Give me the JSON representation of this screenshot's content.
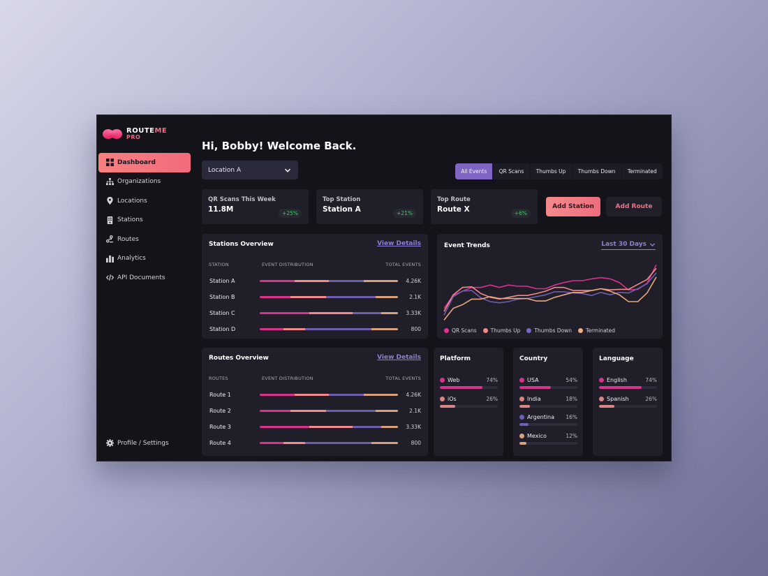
{
  "brand": {
    "name_part1": "ROUTE",
    "name_part2": "ME",
    "tier": "PRO"
  },
  "sidebar": {
    "items": [
      {
        "label": "Dashboard",
        "icon": "grid-icon",
        "active": true
      },
      {
        "label": "Organizations",
        "icon": "org-chart-icon",
        "active": false
      },
      {
        "label": "Locations",
        "icon": "map-pin-icon",
        "active": false
      },
      {
        "label": "Stations",
        "icon": "station-icon",
        "active": false
      },
      {
        "label": "Routes",
        "icon": "route-icon",
        "active": false
      },
      {
        "label": "Analytics",
        "icon": "bar-chart-icon",
        "active": false
      },
      {
        "label": "API Documents",
        "icon": "code-icon",
        "active": false
      }
    ],
    "profile_label": "Profile / Settings"
  },
  "header": {
    "greeting": "Hi, Bobby! Welcome Back.",
    "location_select": "Location A",
    "filters": [
      {
        "label": "All Events",
        "active": true
      },
      {
        "label": "QR Scans",
        "active": false
      },
      {
        "label": "Thumbs Up",
        "active": false
      },
      {
        "label": "Thumbs Down",
        "active": false
      },
      {
        "label": "Terminated",
        "active": false
      }
    ]
  },
  "stats": [
    {
      "label": "QR Scans This Week",
      "value": "11.8M",
      "change": "+25%"
    },
    {
      "label": "Top Station",
      "value": "Station A",
      "change": "+21%"
    },
    {
      "label": "Top Route",
      "value": "Route X",
      "change": "+6%"
    }
  ],
  "actions": {
    "add_station": "Add Station",
    "add_route": "Add Route"
  },
  "colors": {
    "qr_scans": "#d9328c",
    "thumbs_up": "#f2898a",
    "thumbs_down": "#6e5fae",
    "terminated": "#d9a07e",
    "accent": "#8066c2",
    "positive": "#49c26c"
  },
  "stations_overview": {
    "title": "Stations Overview",
    "view_details": "View Details",
    "columns": [
      "STATION",
      "EVENT DISTRIBUTION",
      "TOTAL EVENTS"
    ],
    "rows": [
      {
        "name": "Station A",
        "dist": [
          25,
          25,
          25,
          25
        ],
        "total": "4.26K"
      },
      {
        "name": "Station B",
        "dist": [
          22,
          26,
          36,
          16
        ],
        "total": "2.1K"
      },
      {
        "name": "Station C",
        "dist": [
          36,
          31,
          21,
          12
        ],
        "total": "3.33K"
      },
      {
        "name": "Station D",
        "dist": [
          17,
          16,
          48,
          19
        ],
        "total": "800"
      }
    ]
  },
  "routes_overview": {
    "title": "Routes Overview",
    "view_details": "View Details",
    "columns": [
      "ROUTES",
      "EVENT DISTRIBUTION",
      "TOTAL EVENTS"
    ],
    "rows": [
      {
        "name": "Route 1",
        "dist": [
          25,
          25,
          25,
          25
        ],
        "total": "4.26K"
      },
      {
        "name": "Route 2",
        "dist": [
          22,
          26,
          36,
          16
        ],
        "total": "2.1K"
      },
      {
        "name": "Route 3",
        "dist": [
          36,
          31,
          21,
          12
        ],
        "total": "3.33K"
      },
      {
        "name": "Route 4",
        "dist": [
          17,
          16,
          48,
          19
        ],
        "total": "800"
      }
    ]
  },
  "event_trends": {
    "title": "Event Trends",
    "range": "Last 30 Days",
    "legend": [
      "QR Scans",
      "Thumbs Up",
      "Thumbs Down",
      "Terminated"
    ]
  },
  "chart_data": {
    "type": "line",
    "title": "Event Trends",
    "xlabel": "",
    "ylabel": "",
    "x": [
      1,
      2,
      3,
      4,
      5,
      6,
      7,
      8,
      9,
      10,
      11,
      12,
      13,
      14,
      15,
      16,
      17,
      18,
      19,
      20,
      21,
      22,
      23,
      24
    ],
    "ylim": [
      0,
      100
    ],
    "grid": false,
    "legend_position": "bottom",
    "series": [
      {
        "name": "QR Scans",
        "color": "#d9328c",
        "values": [
          22,
          43,
          50,
          56,
          56,
          60,
          56,
          60,
          58,
          58,
          54,
          54,
          60,
          64,
          67,
          67,
          70,
          72,
          70,
          64,
          52,
          53,
          63,
          93
        ]
      },
      {
        "name": "Thumbs Up",
        "color": "#f2898a",
        "values": [
          17,
          44,
          56,
          57,
          46,
          40,
          37,
          40,
          43,
          43,
          46,
          50,
          56,
          56,
          51,
          51,
          51,
          54,
          52,
          53,
          53,
          61,
          69,
          87
        ]
      },
      {
        "name": "Thumbs Down",
        "color": "#6e5fae",
        "values": [
          11,
          41,
          50,
          51,
          39,
          33,
          31,
          33,
          37,
          38,
          41,
          44,
          49,
          49,
          47,
          46,
          43,
          48,
          44,
          48,
          47,
          54,
          62,
          80
        ]
      },
      {
        "name": "Terminated",
        "color": "#e8a77c",
        "values": [
          3,
          22,
          28,
          37,
          37,
          41,
          38,
          38,
          38,
          38,
          34,
          34,
          40,
          44,
          48,
          48,
          51,
          54,
          50,
          44,
          33,
          33,
          47,
          73
        ]
      }
    ]
  },
  "platform": {
    "title": "Platform",
    "items": [
      {
        "label": "Web",
        "pct": "74%",
        "value": 74,
        "color": "#d9328c"
      },
      {
        "label": "iOs",
        "pct": "26%",
        "value": 26,
        "color": "#d98686"
      }
    ]
  },
  "country": {
    "title": "Country",
    "items": [
      {
        "label": "USA",
        "pct": "54%",
        "value": 54,
        "color": "#d9328c"
      },
      {
        "label": "India",
        "pct": "18%",
        "value": 18,
        "color": "#d98686"
      },
      {
        "label": "Argentina",
        "pct": "16%",
        "value": 16,
        "color": "#6e5fae"
      },
      {
        "label": "Mexico",
        "pct": "12%",
        "value": 12,
        "color": "#d9a07e"
      }
    ]
  },
  "language": {
    "title": "Language",
    "items": [
      {
        "label": "English",
        "pct": "74%",
        "value": 74,
        "color": "#d9328c"
      },
      {
        "label": "Spanish",
        "pct": "26%",
        "value": 26,
        "color": "#d98686"
      }
    ]
  }
}
